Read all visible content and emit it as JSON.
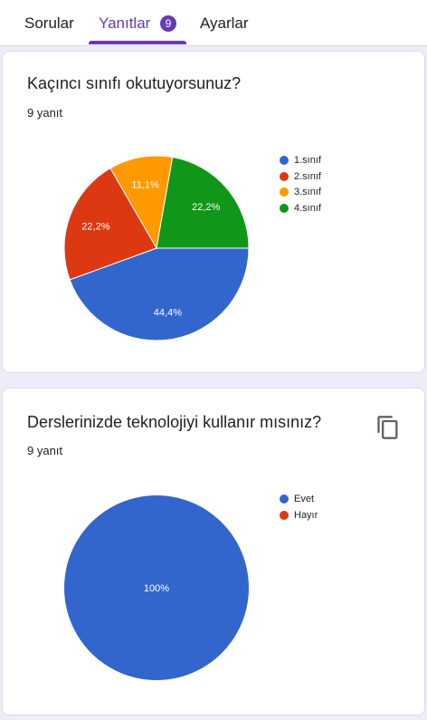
{
  "tabs": [
    {
      "label": "Sorular",
      "active": false
    },
    {
      "label": "Yanıtlar",
      "active": true,
      "badge": "9"
    },
    {
      "label": "Ayarlar",
      "active": false
    }
  ],
  "colors": {
    "accent": "#673ab7",
    "blue": "#3366cc",
    "red": "#dc3912",
    "orange": "#ff9900",
    "green": "#109618"
  },
  "questions": [
    {
      "title": "Kaçıncı sınıfı okutuyorsunuz?",
      "count": "9 yanıt"
    },
    {
      "title": "Derslerinizde teknolojiyi kullanır mısınız?",
      "count": "9 yanıt",
      "copy_icon": "copy-icon"
    }
  ],
  "chart_data": [
    {
      "type": "pie",
      "categories": [
        "1.sınıf",
        "2.sınıf",
        "3.sınıf",
        "4.sınıf"
      ],
      "values": [
        44.4,
        22.2,
        11.1,
        22.2
      ],
      "data_labels": [
        "44,4%",
        "22,2%",
        "11,1%",
        "22,2%"
      ],
      "colors": [
        "#3366cc",
        "#dc3912",
        "#ff9900",
        "#109618"
      ],
      "legend_position": "right"
    },
    {
      "type": "pie",
      "categories": [
        "Evet",
        "Hayır"
      ],
      "values": [
        100,
        0
      ],
      "data_labels": [
        "100%",
        ""
      ],
      "colors": [
        "#3366cc",
        "#dc3912"
      ],
      "legend_position": "right"
    }
  ]
}
